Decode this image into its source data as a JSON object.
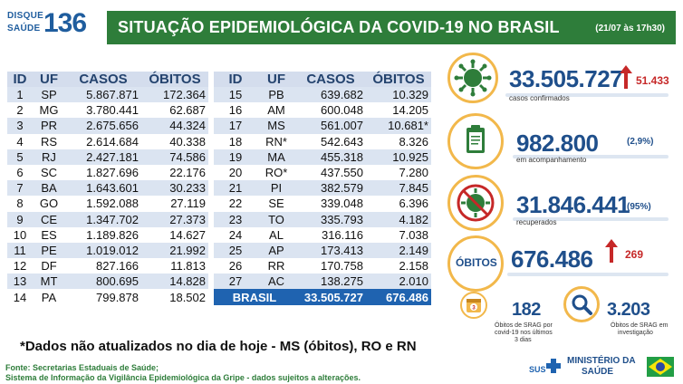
{
  "logo": {
    "line1": "DISQUE",
    "line2": "SAÚDE",
    "number": "136"
  },
  "header": {
    "title": "SITUAÇÃO EPIDEMIOLÓGICA DA COVID-19 NO BRASIL",
    "date": "(21/07 às 17h30)"
  },
  "table_left": {
    "headers": [
      "ID",
      "UF",
      "CASOS",
      "ÓBITOS"
    ],
    "rows": [
      [
        "1",
        "SP",
        "5.867.871",
        "172.364"
      ],
      [
        "2",
        "MG",
        "3.780.441",
        "62.687"
      ],
      [
        "3",
        "PR",
        "2.675.656",
        "44.324"
      ],
      [
        "4",
        "RS",
        "2.614.684",
        "40.338"
      ],
      [
        "5",
        "RJ",
        "2.427.181",
        "74.586"
      ],
      [
        "6",
        "SC",
        "1.827.696",
        "22.176"
      ],
      [
        "7",
        "BA",
        "1.643.601",
        "30.233"
      ],
      [
        "8",
        "GO",
        "1.592.088",
        "27.119"
      ],
      [
        "9",
        "CE",
        "1.347.702",
        "27.373"
      ],
      [
        "10",
        "ES",
        "1.189.826",
        "14.627"
      ],
      [
        "11",
        "PE",
        "1.019.012",
        "21.992"
      ],
      [
        "12",
        "DF",
        "827.166",
        "11.813"
      ],
      [
        "13",
        "MT",
        "800.695",
        "14.828"
      ],
      [
        "14",
        "PA",
        "799.878",
        "18.502"
      ]
    ]
  },
  "table_right": {
    "headers": [
      "ID",
      "UF",
      "CASOS",
      "ÓBITOS"
    ],
    "rows": [
      [
        "15",
        "PB",
        "639.682",
        "10.329"
      ],
      [
        "16",
        "AM",
        "600.048",
        "14.205"
      ],
      [
        "17",
        "MS",
        "561.007",
        "10.681*"
      ],
      [
        "18",
        "RN*",
        "542.643",
        "8.326"
      ],
      [
        "19",
        "MA",
        "455.318",
        "10.925"
      ],
      [
        "20",
        "RO*",
        "437.550",
        "7.280"
      ],
      [
        "21",
        "PI",
        "382.579",
        "7.845"
      ],
      [
        "22",
        "SE",
        "339.048",
        "6.396"
      ],
      [
        "23",
        "TO",
        "335.793",
        "4.182"
      ],
      [
        "24",
        "AL",
        "316.116",
        "7.038"
      ],
      [
        "25",
        "AP",
        "173.413",
        "2.149"
      ],
      [
        "26",
        "RR",
        "170.758",
        "2.158"
      ],
      [
        "27",
        "AC",
        "138.275",
        "2.010"
      ]
    ],
    "total": {
      "label": "BRASIL",
      "casos": "33.505.727",
      "obitos": "676.486"
    }
  },
  "cards": {
    "confirmados": {
      "value": "33.505.727",
      "delta": "51.433",
      "label": "casos confirmados",
      "icon": "virus-icon"
    },
    "acompanhamento": {
      "value": "982.800",
      "pct": "(2,9%)",
      "label": "em acompanhamento",
      "icon": "clipboard-icon"
    },
    "recuperados": {
      "value": "31.846.441",
      "pct": "(95%)",
      "label": "recuperados",
      "icon": "crossed-virus-icon"
    },
    "obitos": {
      "badge": "ÓBITOS",
      "value": "676.486",
      "delta": "269"
    },
    "srag": {
      "value": "182",
      "label1": "Óbitos de SRAG por",
      "label2": "covid-19 nos últimos",
      "label3": "3 dias",
      "icon": "calendar-icon"
    },
    "investigacao": {
      "value": "3.203",
      "label1": "Óbitos de SRAG em",
      "label2": "investigação",
      "icon": "magnifier-icon"
    }
  },
  "footnote": "*Dados não atualizados no dia de hoje - MS (óbitos), RO e RN",
  "source": {
    "line1": "Fonte: Secretarias Estaduais de Saúde;",
    "line2": "Sistema de Informação da Vigilância Epidemiológica da Gripe - dados sujeitos a alterações."
  },
  "branding": {
    "sus": "SUS",
    "ministerio1": "MINISTÉRIO DA",
    "ministerio2": "SAÚDE"
  },
  "colors": {
    "green": "#2e7d3a",
    "blue": "#1f4f8b",
    "red": "#c62828",
    "gold": "#f2b84b",
    "stripe": "#dbe4f1"
  }
}
